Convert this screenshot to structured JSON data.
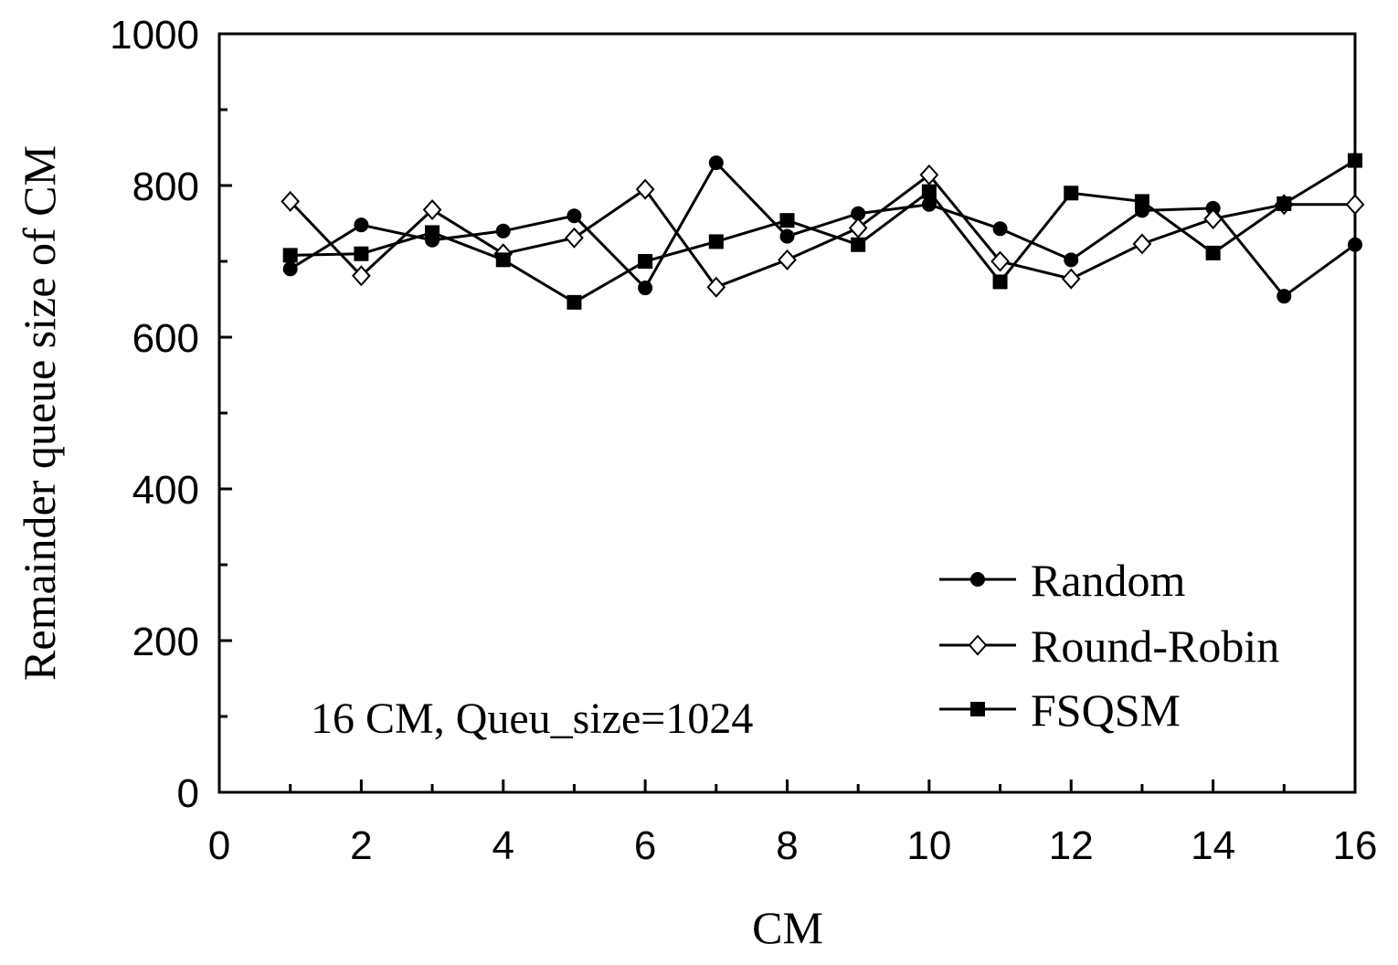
{
  "chart_data": {
    "type": "line",
    "title": "",
    "xlabel": "CM",
    "ylabel": "Remainder queue size of CM",
    "xlim": [
      0,
      16
    ],
    "ylim": [
      0,
      1000
    ],
    "xticks": [
      0,
      2,
      4,
      6,
      8,
      10,
      12,
      14,
      16
    ],
    "yticks": [
      0,
      200,
      400,
      600,
      800,
      1000
    ],
    "x": [
      1,
      2,
      3,
      4,
      5,
      6,
      7,
      8,
      9,
      10,
      11,
      12,
      13,
      14,
      15,
      16
    ],
    "series": [
      {
        "name": "Random",
        "marker": "filled-circle",
        "values": [
          690,
          748,
          728,
          740,
          760,
          665,
          830,
          733,
          763,
          775,
          743,
          702,
          767,
          770,
          654,
          722
        ]
      },
      {
        "name": "Round-Robin",
        "marker": "open-diamond",
        "values": [
          779,
          681,
          768,
          710,
          731,
          795,
          666,
          702,
          744,
          814,
          700,
          677,
          723,
          756,
          775,
          775
        ]
      },
      {
        "name": "FSQSM",
        "marker": "filled-square",
        "values": [
          708,
          710,
          738,
          702,
          646,
          700,
          726,
          754,
          722,
          792,
          673,
          790,
          779,
          711,
          776,
          833
        ]
      }
    ],
    "legend_position": "bottom-right",
    "annotation": "16 CM, Queu_size=1024",
    "grid": false
  }
}
